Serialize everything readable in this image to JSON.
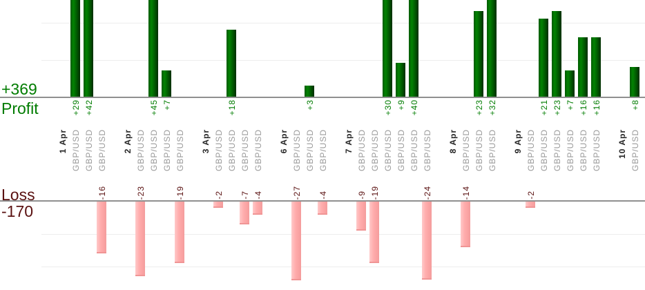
{
  "chart_data": {
    "type": "bar",
    "title": "",
    "legend": "none",
    "grid": "horizontal, every 10 units",
    "profit_axis": {
      "total_label": "+369",
      "total_value": 369,
      "axis_label": "Profit",
      "visible_range": [
        0,
        26
      ],
      "text_color": "#007c00"
    },
    "loss_axis": {
      "total_label": "-170",
      "total_value": -170,
      "axis_label": "Loss",
      "visible_range": [
        0,
        -24
      ],
      "text_color": "#5a1111"
    },
    "colors": {
      "profit_bar": "#017a01",
      "loss_bar": "#ffacac",
      "date_text": "#262626",
      "instrument_text": "#999999",
      "gridline": "#ededed",
      "axis_line": "#8f8f8f"
    },
    "groups": [
      {
        "date": "1 Apr",
        "trades": [
          {
            "instrument": "GBP/USD",
            "value": 29,
            "label": "+29"
          },
          {
            "instrument": "GBP/USD",
            "value": 42,
            "label": "+42"
          },
          {
            "instrument": "GBP/USD",
            "value": -16,
            "label": "-16"
          }
        ]
      },
      {
        "date": "2 Apr",
        "trades": [
          {
            "instrument": "GBP/USD",
            "value": -23,
            "label": "-23"
          },
          {
            "instrument": "GBP/USD",
            "value": 45,
            "label": "+45"
          },
          {
            "instrument": "GBP/USD",
            "value": 7,
            "label": "+7"
          },
          {
            "instrument": "GBP/USD",
            "value": -19,
            "label": "-19"
          }
        ]
      },
      {
        "date": "3 Apr",
        "trades": [
          {
            "instrument": "GBP/USD",
            "value": -2,
            "label": "-2"
          },
          {
            "instrument": "GBP/USD",
            "value": 18,
            "label": "+18"
          },
          {
            "instrument": "GBP/USD",
            "value": -7,
            "label": "-7"
          },
          {
            "instrument": "GBP/USD",
            "value": -4,
            "label": "-4"
          }
        ]
      },
      {
        "date": "6 Apr",
        "trades": [
          {
            "instrument": "GBP/USD",
            "value": -27,
            "label": "-27"
          },
          {
            "instrument": "GBP/USD",
            "value": 3,
            "label": "+3"
          },
          {
            "instrument": "GBP/USD",
            "value": -4,
            "label": "-4"
          }
        ]
      },
      {
        "date": "7 Apr",
        "trades": [
          {
            "instrument": "GBP/USD",
            "value": -9,
            "label": "-9"
          },
          {
            "instrument": "GBP/USD",
            "value": -19,
            "label": "-19"
          },
          {
            "instrument": "GBP/USD",
            "value": 30,
            "label": "+30"
          },
          {
            "instrument": "GBP/USD",
            "value": 9,
            "label": "+9"
          },
          {
            "instrument": "GBP/USD",
            "value": 40,
            "label": "+40"
          },
          {
            "instrument": "GBP/USD",
            "value": -24,
            "label": "-24"
          }
        ]
      },
      {
        "date": "8 Apr",
        "trades": [
          {
            "instrument": "GBP/USD",
            "value": -14,
            "label": "-14"
          },
          {
            "instrument": "GBP/USD",
            "value": 23,
            "label": "+23"
          },
          {
            "instrument": "GBP/USD",
            "value": 32,
            "label": "+32"
          }
        ]
      },
      {
        "date": "9 Apr",
        "trades": [
          {
            "instrument": "GBP/USD",
            "value": -2,
            "label": "-2"
          },
          {
            "instrument": "GBP/USD",
            "value": 21,
            "label": "+21"
          },
          {
            "instrument": "GBP/USD",
            "value": 23,
            "label": "+23"
          },
          {
            "instrument": "GBP/USD",
            "value": 7,
            "label": "+7"
          },
          {
            "instrument": "GBP/USD",
            "value": 16,
            "label": "+16"
          },
          {
            "instrument": "GBP/USD",
            "value": 16,
            "label": "+16"
          }
        ]
      },
      {
        "date": "10 Apr",
        "trades": [
          {
            "instrument": "GBP/USD",
            "value": 8,
            "label": "+8"
          }
        ]
      }
    ]
  }
}
